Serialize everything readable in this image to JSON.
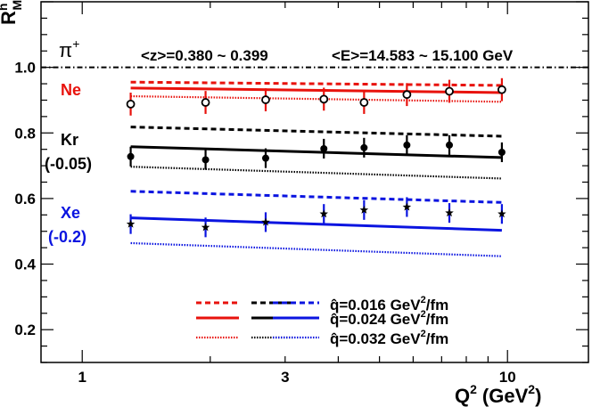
{
  "chart_data": {
    "type": "line",
    "ylabel": "R",
    "ylabel_sup": "h",
    "ylabel_sub": "M",
    "xlabel": "Q",
    "xlabel_sup": "2",
    "xlabel_unit": "(GeV",
    "xlabel_unit_sup": "2",
    "xlabel_unit_close": ")",
    "x_scale": "log",
    "xlim": [
      0.8,
      15.5
    ],
    "ylim": [
      0.1,
      1.2
    ],
    "x_ticks": [
      1,
      3,
      10
    ],
    "x_tick_labels": [
      "1",
      "3",
      "10"
    ],
    "y_ticks": [
      0.2,
      0.4,
      0.6,
      0.8,
      1.0
    ],
    "y_tick_labels": [
      "0.2",
      "0.4",
      "0.6",
      "0.8",
      "1.0"
    ],
    "reference_line": 1.0,
    "annotations": {
      "particle": "π",
      "particle_sup": "+",
      "z_range": "<z>=0.380 ~ 0.399",
      "E_range": "<E>=14.583 ~ 15.100 GeV"
    },
    "targets": [
      {
        "label": "Ne",
        "offset_label": "",
        "color": "#e8120c",
        "data_marker": "open-circle",
        "data": {
          "x": [
            1.3,
            1.95,
            2.7,
            3.7,
            4.6,
            5.8,
            7.3,
            9.7
          ],
          "y": [
            0.888,
            0.893,
            0.901,
            0.903,
            0.893,
            0.917,
            0.927,
            0.932
          ],
          "yerr": [
            0.035,
            0.035,
            0.035,
            0.035,
            0.035,
            0.035,
            0.035,
            0.035
          ]
        },
        "curves": [
          {
            "qhat": "0.016",
            "style": "dashed",
            "x": [
              1.3,
              9.7
            ],
            "y": [
              0.955,
              0.945
            ]
          },
          {
            "qhat": "0.024",
            "style": "solid",
            "x": [
              1.3,
              9.7
            ],
            "y": [
              0.937,
              0.923
            ]
          },
          {
            "qhat": "0.032",
            "style": "dotted",
            "x": [
              1.3,
              9.7
            ],
            "y": [
              0.912,
              0.895
            ]
          }
        ]
      },
      {
        "label": "Kr",
        "offset_label": "(-0.05)",
        "color": "#000000",
        "data_marker": "filled-circle",
        "data": {
          "x": [
            1.3,
            1.95,
            2.7,
            3.7,
            4.6,
            5.8,
            7.3,
            9.7
          ],
          "y": [
            0.728,
            0.718,
            0.723,
            0.752,
            0.755,
            0.763,
            0.763,
            0.741
          ],
          "yerr": [
            0.03,
            0.03,
            0.03,
            0.03,
            0.03,
            0.03,
            0.03,
            0.03
          ]
        },
        "curves": [
          {
            "qhat": "0.016",
            "style": "dashed",
            "x": [
              1.3,
              9.7
            ],
            "y": [
              0.818,
              0.79
            ]
          },
          {
            "qhat": "0.024",
            "style": "solid",
            "x": [
              1.3,
              9.7
            ],
            "y": [
              0.758,
              0.725
            ]
          },
          {
            "qhat": "0.032",
            "style": "dotted",
            "x": [
              1.3,
              9.7
            ],
            "y": [
              0.697,
              0.661
            ]
          }
        ]
      },
      {
        "label": "Xe",
        "offset_label": "(-0.2)",
        "color": "#0a14e0",
        "data_marker": "star",
        "data": {
          "x": [
            1.3,
            1.95,
            2.7,
            3.7,
            4.6,
            5.8,
            7.3,
            9.7
          ],
          "y": [
            0.522,
            0.512,
            0.528,
            0.553,
            0.565,
            0.574,
            0.556,
            0.553
          ],
          "yerr": [
            0.03,
            0.03,
            0.03,
            0.03,
            0.03,
            0.03,
            0.03,
            0.03
          ]
        },
        "curves": [
          {
            "qhat": "0.016",
            "style": "dashed",
            "x": [
              1.3,
              9.7
            ],
            "y": [
              0.622,
              0.588
            ]
          },
          {
            "qhat": "0.024",
            "style": "solid",
            "x": [
              1.3,
              9.7
            ],
            "y": [
              0.541,
              0.503
            ]
          },
          {
            "qhat": "0.032",
            "style": "dotted",
            "x": [
              1.3,
              9.7
            ],
            "y": [
              0.464,
              0.424
            ]
          }
        ]
      }
    ],
    "legend": {
      "placement": "bottom-right",
      "entries": [
        {
          "style": "dashed",
          "text": "q̂=0.016 GeV",
          "sup": "2",
          "unit": "/fm"
        },
        {
          "style": "solid",
          "text": "q̂=0.024 GeV",
          "sup": "2",
          "unit": "/fm"
        },
        {
          "style": "dotted",
          "text": "q̂=0.032 GeV",
          "sup": "2",
          "unit": "/fm"
        }
      ]
    }
  }
}
